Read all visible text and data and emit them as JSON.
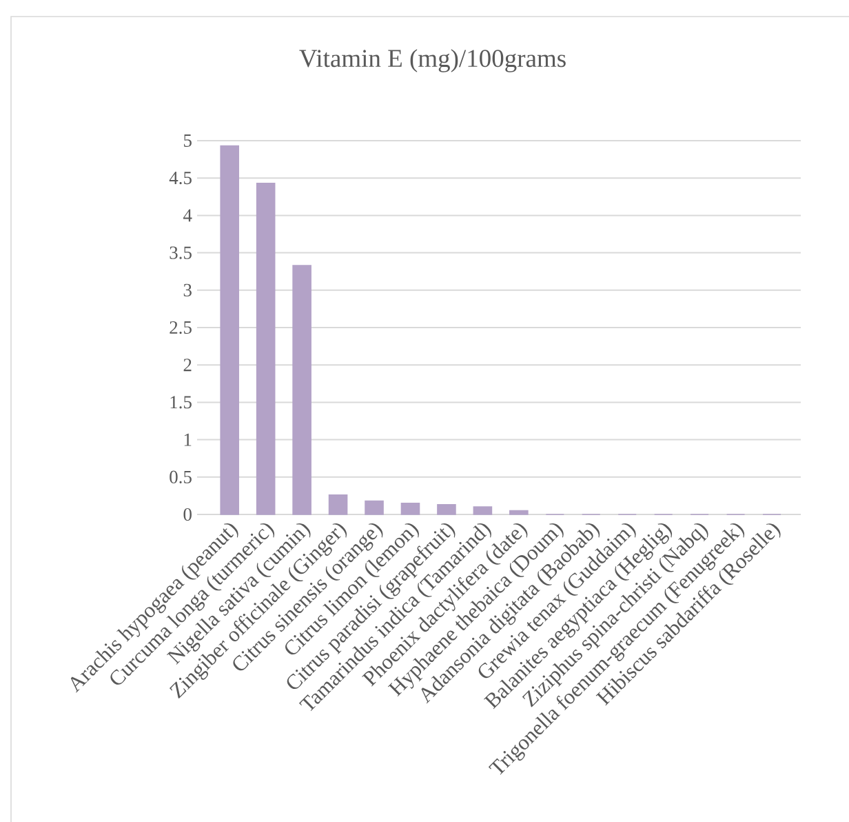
{
  "chart_data": {
    "type": "bar",
    "title": "Vitamin E (mg)/100grams",
    "categories": [
      "Arachis hypogaea (peanut)",
      "Curcuma longa (turmeric)",
      "Nigella sativa (cumin)",
      "Zingiber officinale (Ginger)",
      "Citrus sinensis (orange)",
      "Citrus limon (lemon)",
      "Citrus paradisi (grapefruit)",
      "Tamarindus indica (Tamarind)",
      "Phoenix dactylifera (date)",
      "Hyphaene thebaica (Doum)",
      "Adansonia digitata (Baobab)",
      "Grewia tenax (Guddaim)",
      "Balanites aegyptiaca (Heglig)",
      "Ziziphus spina-christi (Nabq)",
      "Trigonella foenum-graecum (Fenugreek)",
      "Hibiscus sabdariffa (Roselle)"
    ],
    "values": [
      4.93,
      4.43,
      3.33,
      0.26,
      0.18,
      0.15,
      0.13,
      0.1,
      0.05,
      0,
      0,
      0,
      0,
      0,
      0,
      0
    ],
    "color": "#b3a2c7",
    "ylim": [
      0,
      5
    ],
    "yticks": [
      0,
      0.5,
      1,
      1.5,
      2,
      2.5,
      3,
      3.5,
      4,
      4.5,
      5
    ],
    "grid": "y"
  }
}
